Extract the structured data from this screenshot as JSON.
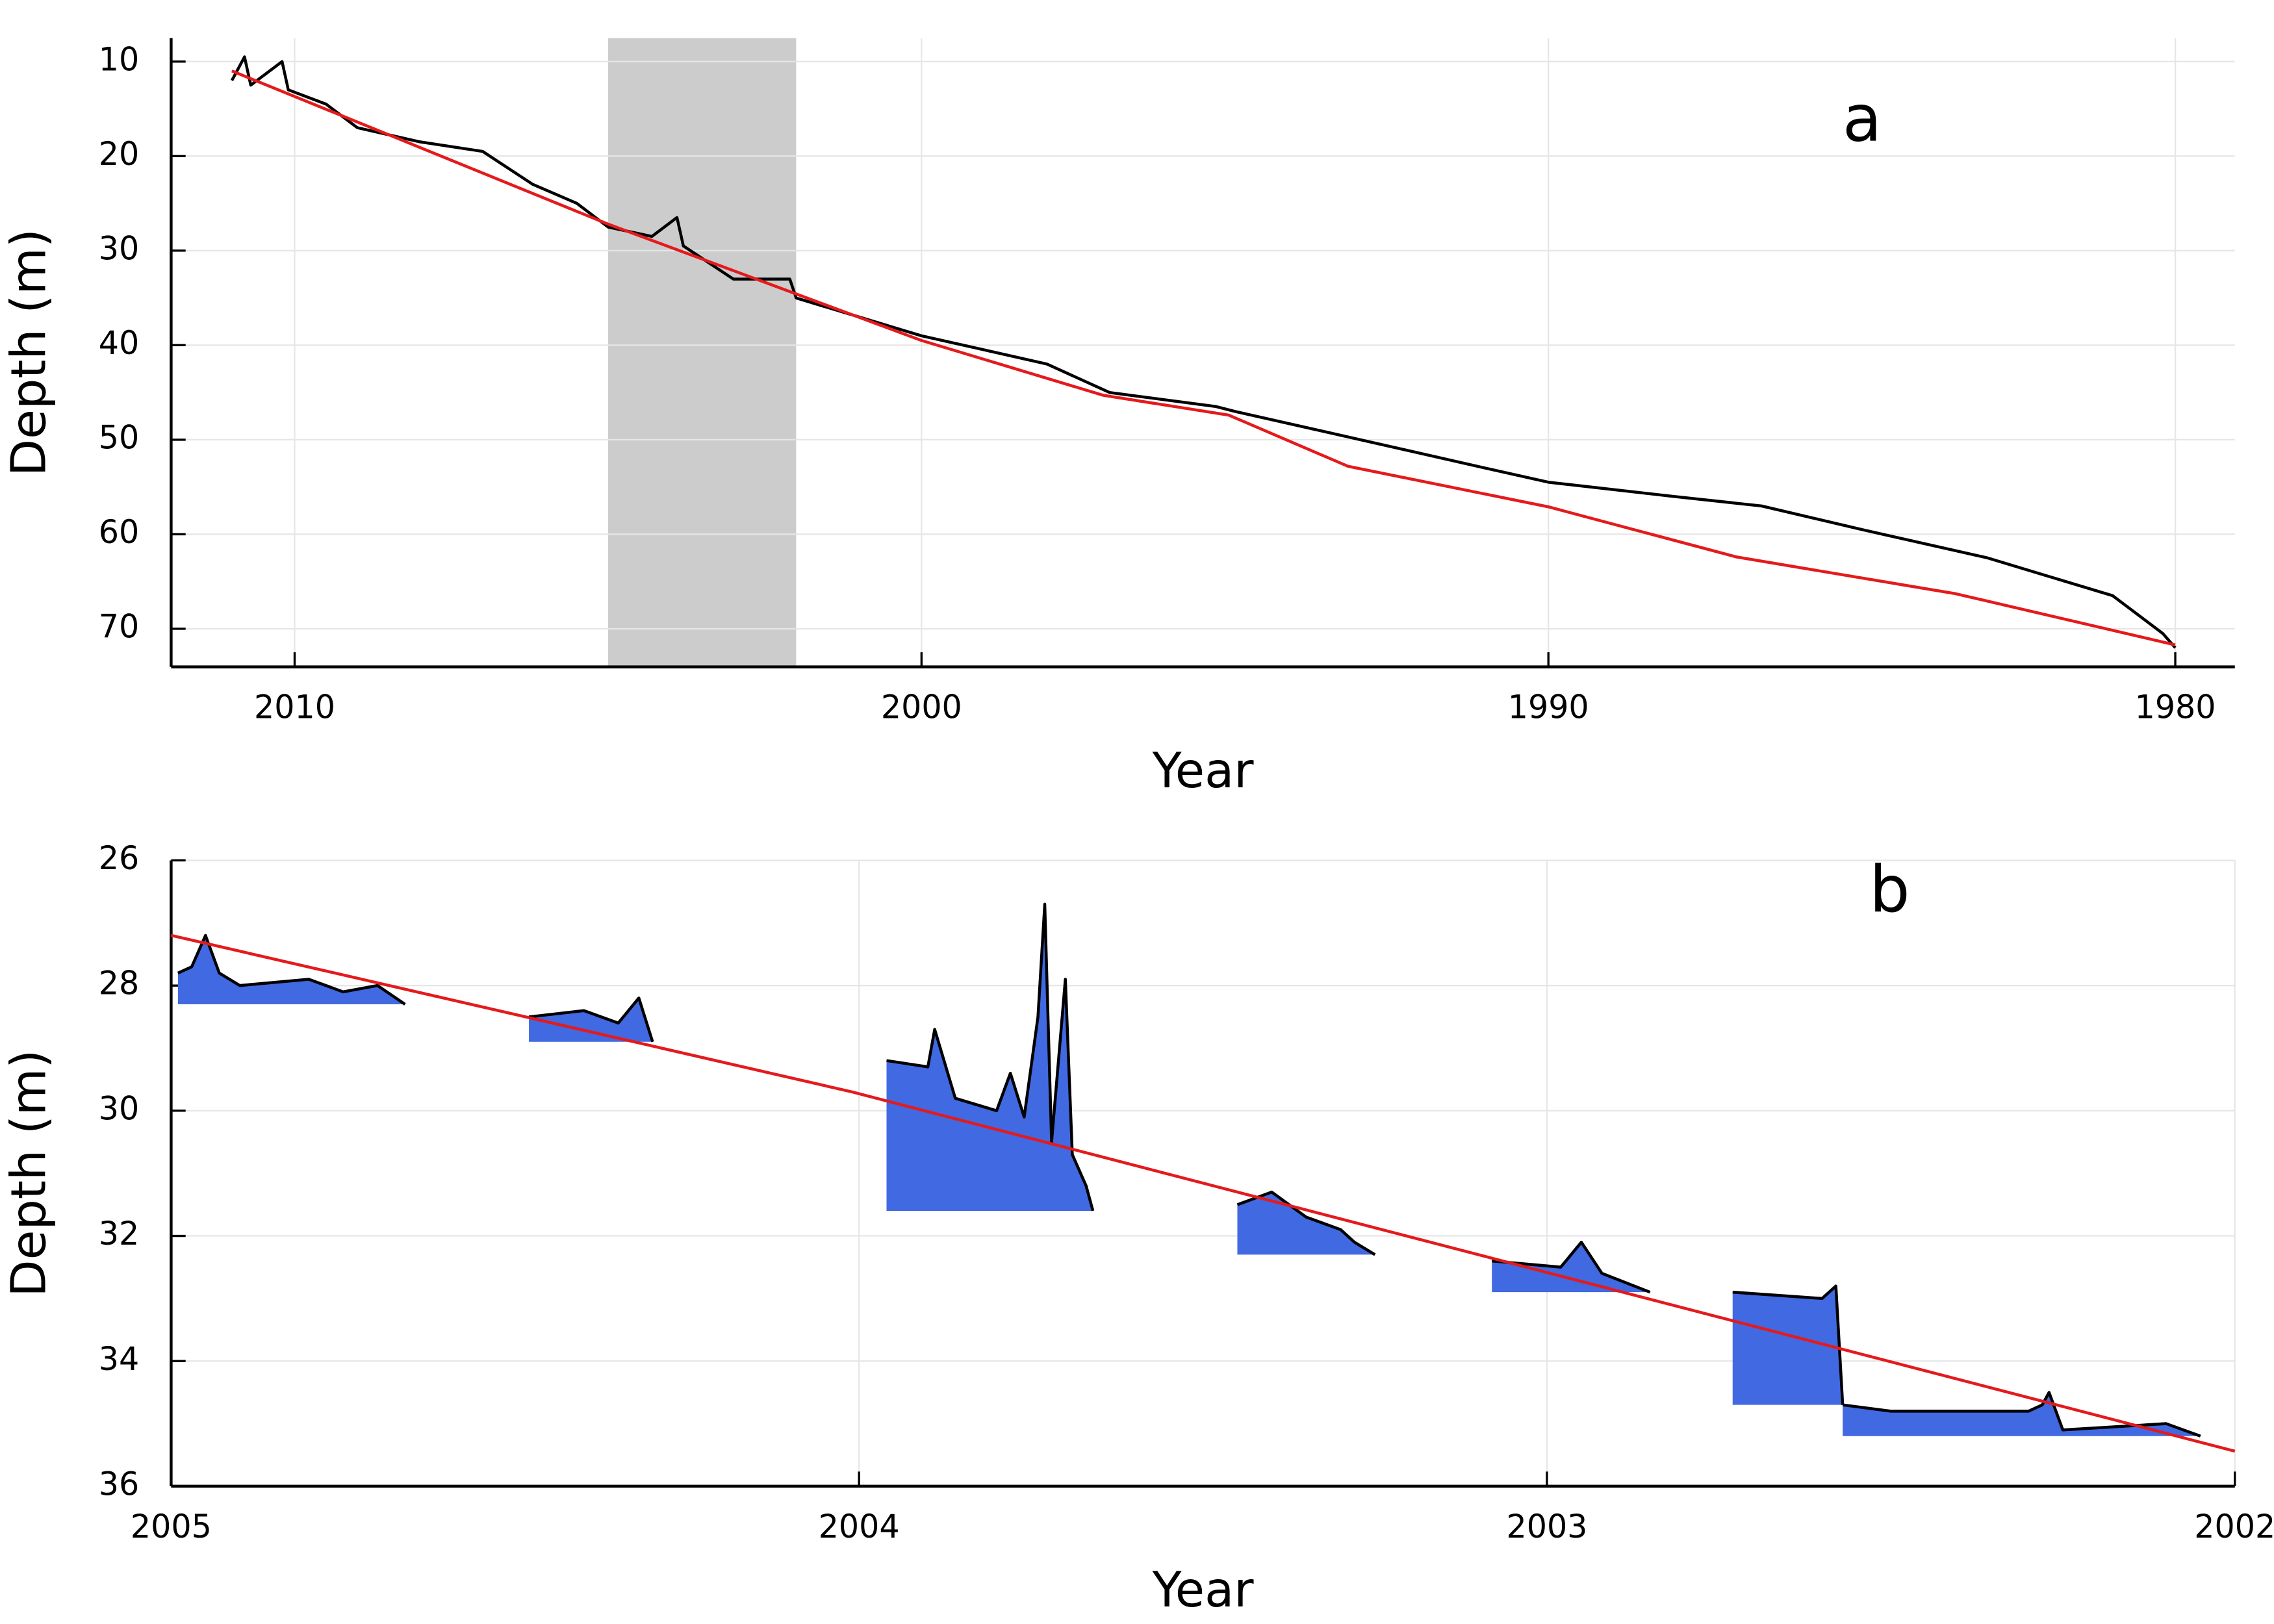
{
  "chart_data": [
    {
      "type": "line",
      "annotation": "a",
      "xlabel": "Year",
      "ylabel": "Depth (m)",
      "xlim": [
        2011.97,
        1979.05
      ],
      "ylim": [
        74.03,
        7.52
      ],
      "xticks": [
        2010,
        2000,
        1990,
        1980
      ],
      "yticks": [
        10,
        20,
        30,
        40,
        50,
        60,
        70
      ],
      "grid": true,
      "shaded_span": [
        2005,
        2002
      ],
      "shaded_color": "#cccccc",
      "series": [
        {
          "color": "#000000",
          "x": [
            2011,
            2010.8,
            2010.7,
            2010.2,
            2010.1,
            2009.5,
            2009,
            2008,
            2007,
            2006.2,
            2005.5,
            2005,
            2004.3,
            2003.9,
            2003.8,
            2003,
            2002.1,
            2002,
            2001,
            2000,
            1999,
            1998,
            1997,
            1995.3,
            1995,
            1993,
            1991,
            1990,
            1988,
            1986.6,
            1985,
            1983,
            1982,
            1981,
            1980.2,
            1980
          ],
          "values": [
            12,
            9.5,
            12.5,
            10,
            13,
            14.5,
            17,
            18.5,
            19.5,
            23,
            25,
            27.5,
            28.5,
            26.5,
            29.5,
            33,
            33,
            35,
            37,
            39,
            40.5,
            42,
            45,
            46.5,
            47,
            50,
            53,
            54.5,
            56,
            57,
            59.5,
            62.5,
            64.5,
            66.5,
            70.5,
            72
          ]
        },
        {
          "color": "#e41a1c",
          "x": [
            2011,
            2005,
            2000,
            1997.1,
            1995.1,
            1993.2,
            1990,
            1987,
            1983.5,
            1980
          ],
          "values": [
            11,
            27.2,
            39.5,
            45.3,
            47.4,
            52.8,
            57.1,
            62.4,
            66.3,
            71.7
          ]
        }
      ]
    },
    {
      "type": "line",
      "annotation": "b",
      "xlabel": "Year",
      "ylabel": "Depth (m)",
      "xlim": [
        2005,
        2002
      ],
      "ylim": [
        36,
        26
      ],
      "xticks": [
        2005,
        2004,
        2003,
        2002
      ],
      "yticks": [
        26,
        28,
        30,
        32,
        34,
        36
      ],
      "grid": true,
      "series": [
        {
          "color": "#000000",
          "fill": "#4169e1",
          "x": [
            2004.99,
            2004.97,
            2004.95,
            2004.93,
            2004.9,
            2004.8,
            2004.75,
            2004.7,
            2004.66
          ],
          "values": [
            27.8,
            27.7,
            27.2,
            27.8,
            28.0,
            27.9,
            28.1,
            28.0,
            28.3
          ]
        },
        {
          "color": "#000000",
          "fill": "#4169e1",
          "x": [
            2004.48,
            2004.4,
            2004.35,
            2004.32,
            2004.3
          ],
          "values": [
            28.5,
            28.4,
            28.6,
            28.2,
            28.9
          ]
        },
        {
          "color": "#000000",
          "fill": "#4169e1",
          "x": [
            2003.96,
            2003.9,
            2003.89,
            2003.86,
            2003.8,
            2003.78,
            2003.76,
            2003.74,
            2003.73,
            2003.72,
            2003.7,
            2003.69,
            2003.67,
            2003.66
          ],
          "values": [
            29.2,
            29.3,
            28.7,
            29.8,
            30.0,
            29.4,
            30.1,
            28.5,
            26.7,
            30.5,
            27.9,
            30.7,
            31.2,
            31.6
          ]
        },
        {
          "color": "#000000",
          "fill": "#4169e1",
          "x": [
            2003.45,
            2003.4,
            2003.35,
            2003.3,
            2003.28,
            2003.25
          ],
          "values": [
            31.5,
            31.3,
            31.7,
            31.9,
            32.1,
            32.3
          ]
        },
        {
          "color": "#000000",
          "fill": "#4169e1",
          "x": [
            2003.08,
            2002.98,
            2002.95,
            2002.92,
            2002.85
          ],
          "values": [
            32.4,
            32.5,
            32.1,
            32.6,
            32.9
          ]
        },
        {
          "color": "#000000",
          "fill": "#4169e1",
          "x": [
            2002.73,
            2002.6,
            2002.58,
            2002.57
          ],
          "values": [
            32.9,
            33.0,
            32.8,
            34.7
          ]
        },
        {
          "color": "#000000",
          "fill": "#4169e1",
          "x": [
            2002.57,
            2002.5,
            2002.35,
            2002.3,
            2002.28,
            2002.27,
            2002.25,
            2002.1,
            2002.05
          ],
          "values": [
            34.7,
            34.8,
            34.8,
            34.8,
            34.7,
            34.5,
            35.1,
            35.0,
            35.2
          ]
        },
        {
          "color": "#e41a1c",
          "x": [
            2005,
            2004.01,
            2002
          ],
          "values": [
            27.2,
            29.7,
            35.44
          ]
        }
      ]
    }
  ]
}
